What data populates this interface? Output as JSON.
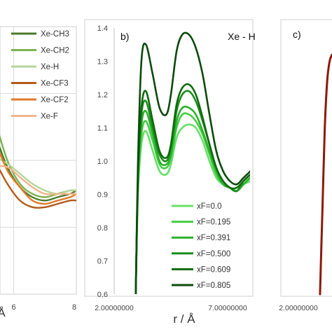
{
  "chart_data": [
    {
      "panel": "a",
      "type": "line",
      "panel_label": "",
      "xlim": [
        4,
        8
      ],
      "ylim": [
        0.6,
        1.4
      ],
      "x_ticks": [
        "6",
        "8"
      ],
      "xlabel_visible": "r / Å",
      "xlabel_fragment": "Å",
      "legend": "top-right",
      "series": [
        {
          "name": "Xe-CH3",
          "color": "#4a7a2a",
          "x": [
            4.2,
            4.6,
            5.0,
            5.4,
            5.8,
            6.2,
            6.6,
            7.0,
            7.4,
            7.8,
            8.0
          ],
          "y": [
            1.2,
            1.24,
            1.2,
            1.08,
            0.98,
            0.92,
            0.89,
            0.88,
            0.89,
            0.9,
            0.91
          ]
        },
        {
          "name": "Xe-CH2",
          "color": "#7bb24f",
          "x": [
            4.2,
            4.6,
            5.0,
            5.4,
            5.8,
            6.2,
            6.6,
            7.0,
            7.4,
            7.8,
            8.0
          ],
          "y": [
            1.05,
            1.15,
            1.24,
            1.12,
            1.0,
            0.93,
            0.9,
            0.89,
            0.9,
            0.91,
            0.91
          ]
        },
        {
          "name": "Xe-H",
          "color": "#b3d59a",
          "x": [
            4.2,
            4.6,
            5.0,
            5.4,
            5.8,
            6.2,
            6.6,
            7.0,
            7.4,
            7.8,
            8.0
          ],
          "y": [
            1.01,
            1.03,
            1.02,
            1.01,
            0.99,
            0.96,
            0.93,
            0.91,
            0.9,
            0.91,
            0.91
          ]
        },
        {
          "name": "Xe-CF3",
          "color": "#b35a1a",
          "x": [
            4.2,
            4.6,
            5.0,
            5.4,
            5.8,
            6.2,
            6.6,
            7.0,
            7.4,
            7.8,
            8.0
          ],
          "y": [
            1.22,
            1.14,
            1.08,
            1.0,
            0.93,
            0.88,
            0.86,
            0.86,
            0.87,
            0.88,
            0.88
          ]
        },
        {
          "name": "Xe-CF2",
          "color": "#e07a2a",
          "x": [
            4.2,
            4.6,
            5.0,
            5.4,
            5.8,
            6.2,
            6.6,
            7.0,
            7.4,
            7.8,
            8.0
          ],
          "y": [
            1.1,
            1.2,
            1.16,
            1.06,
            0.97,
            0.92,
            0.88,
            0.87,
            0.88,
            0.89,
            0.9
          ]
        },
        {
          "name": "Xe-F",
          "color": "#f2b48a",
          "x": [
            4.2,
            4.6,
            5.0,
            5.4,
            5.8,
            6.2,
            6.6,
            7.0,
            7.4,
            7.8,
            8.0
          ],
          "y": [
            0.92,
            0.94,
            0.96,
            0.98,
            0.98,
            0.95,
            0.92,
            0.9,
            0.9,
            0.9,
            0.9
          ]
        }
      ]
    },
    {
      "panel": "b",
      "type": "line",
      "panel_label": "b)",
      "title": "Xe - H",
      "xlim": [
        2,
        8.2
      ],
      "ylim": [
        0.6,
        1.4
      ],
      "y_ticks": [
        "0.6",
        "0.7",
        "0.8",
        "0.9",
        "1.0",
        "1.1",
        "1.2",
        "1.3",
        "1.4"
      ],
      "x_ticks": [
        "2.00000000",
        "7.00000000"
      ],
      "xlabel": "r / Å",
      "legend": "bottom-right",
      "series": [
        {
          "name": "xF=0.0",
          "color": "#66e066",
          "x": [
            2.95,
            3.05,
            3.2,
            3.4,
            3.7,
            4.0,
            4.3,
            4.5,
            4.75,
            5.0,
            5.3,
            5.6,
            5.9,
            6.2,
            6.5,
            6.8,
            7.1,
            7.4,
            7.7,
            8.0,
            8.2
          ],
          "y": [
            0.6,
            0.9,
            1.05,
            1.09,
            1.03,
            0.97,
            0.96,
            0.99,
            1.07,
            1.1,
            1.11,
            1.1,
            1.06,
            1.0,
            0.95,
            0.93,
            0.92,
            0.91,
            0.93,
            0.94,
            0.95
          ]
        },
        {
          "name": "xF=0.195",
          "color": "#45cc45",
          "x": [
            2.95,
            3.05,
            3.2,
            3.4,
            3.7,
            4.0,
            4.3,
            4.5,
            4.75,
            5.0,
            5.3,
            5.6,
            5.9,
            6.2,
            6.5,
            6.8,
            7.1,
            7.4,
            7.7,
            8.0,
            8.2
          ],
          "y": [
            0.6,
            0.92,
            1.08,
            1.12,
            1.06,
            0.99,
            0.98,
            1.01,
            1.1,
            1.14,
            1.14,
            1.12,
            1.08,
            1.02,
            0.96,
            0.93,
            0.92,
            0.91,
            0.93,
            0.95,
            0.96
          ]
        },
        {
          "name": "xF=0.391",
          "color": "#2bb02b",
          "x": [
            2.95,
            3.05,
            3.2,
            3.4,
            3.7,
            4.0,
            4.3,
            4.5,
            4.75,
            5.0,
            5.3,
            5.6,
            5.9,
            6.2,
            6.5,
            6.8,
            7.1,
            7.4,
            7.7,
            8.0,
            8.2
          ],
          "y": [
            0.6,
            0.94,
            1.11,
            1.15,
            1.08,
            1.0,
            0.99,
            1.02,
            1.12,
            1.16,
            1.16,
            1.14,
            1.09,
            1.03,
            0.97,
            0.93,
            0.92,
            0.91,
            0.93,
            0.95,
            0.96
          ]
        },
        {
          "name": "xF=0.500",
          "color": "#1a8c1a",
          "x": [
            2.95,
            3.05,
            3.2,
            3.4,
            3.7,
            4.0,
            4.3,
            4.5,
            4.75,
            5.0,
            5.3,
            5.6,
            5.9,
            6.2,
            6.5,
            6.8,
            7.1,
            7.4,
            7.7,
            8.0,
            8.2
          ],
          "y": [
            0.6,
            0.95,
            1.14,
            1.18,
            1.1,
            1.02,
            1.0,
            1.04,
            1.15,
            1.2,
            1.21,
            1.18,
            1.12,
            1.05,
            0.98,
            0.94,
            0.92,
            0.91,
            0.94,
            0.96,
            0.97
          ]
        },
        {
          "name": "xF=0.609",
          "color": "#0f6a0f",
          "x": [
            2.95,
            3.05,
            3.2,
            3.4,
            3.7,
            4.0,
            4.3,
            4.5,
            4.75,
            5.0,
            5.3,
            5.6,
            5.9,
            6.2,
            6.5,
            6.8,
            7.1,
            7.4,
            7.7,
            8.0,
            8.2
          ],
          "y": [
            0.6,
            0.96,
            1.16,
            1.21,
            1.12,
            1.03,
            1.01,
            1.05,
            1.17,
            1.22,
            1.23,
            1.2,
            1.13,
            1.05,
            0.98,
            0.94,
            0.92,
            0.92,
            0.94,
            0.96,
            0.98
          ]
        },
        {
          "name": "xF=0.805",
          "color": "#0b4a0b",
          "x": [
            2.95,
            3.05,
            3.2,
            3.4,
            3.7,
            4.0,
            4.3,
            4.5,
            4.75,
            5.0,
            5.3,
            5.6,
            5.9,
            6.2,
            6.5,
            6.8,
            7.1,
            7.4,
            7.7,
            8.0,
            8.2
          ],
          "y": [
            0.6,
            1.0,
            1.3,
            1.35,
            1.26,
            1.16,
            1.14,
            1.2,
            1.33,
            1.38,
            1.38,
            1.34,
            1.26,
            1.14,
            1.03,
            0.97,
            0.94,
            0.93,
            0.95,
            0.97,
            0.99
          ]
        }
      ]
    },
    {
      "panel": "c",
      "type": "line",
      "panel_label": "c)",
      "x_ticks": [
        "2.00000000"
      ],
      "ylim": [
        0.6,
        1.4
      ],
      "series": [
        {
          "name": "",
          "color": "#8b1a0a",
          "x": [
            2.9,
            3.0,
            3.1,
            3.2,
            3.3,
            3.4
          ],
          "y": [
            0.6,
            0.85,
            1.1,
            1.24,
            1.3,
            1.32
          ]
        }
      ]
    }
  ]
}
